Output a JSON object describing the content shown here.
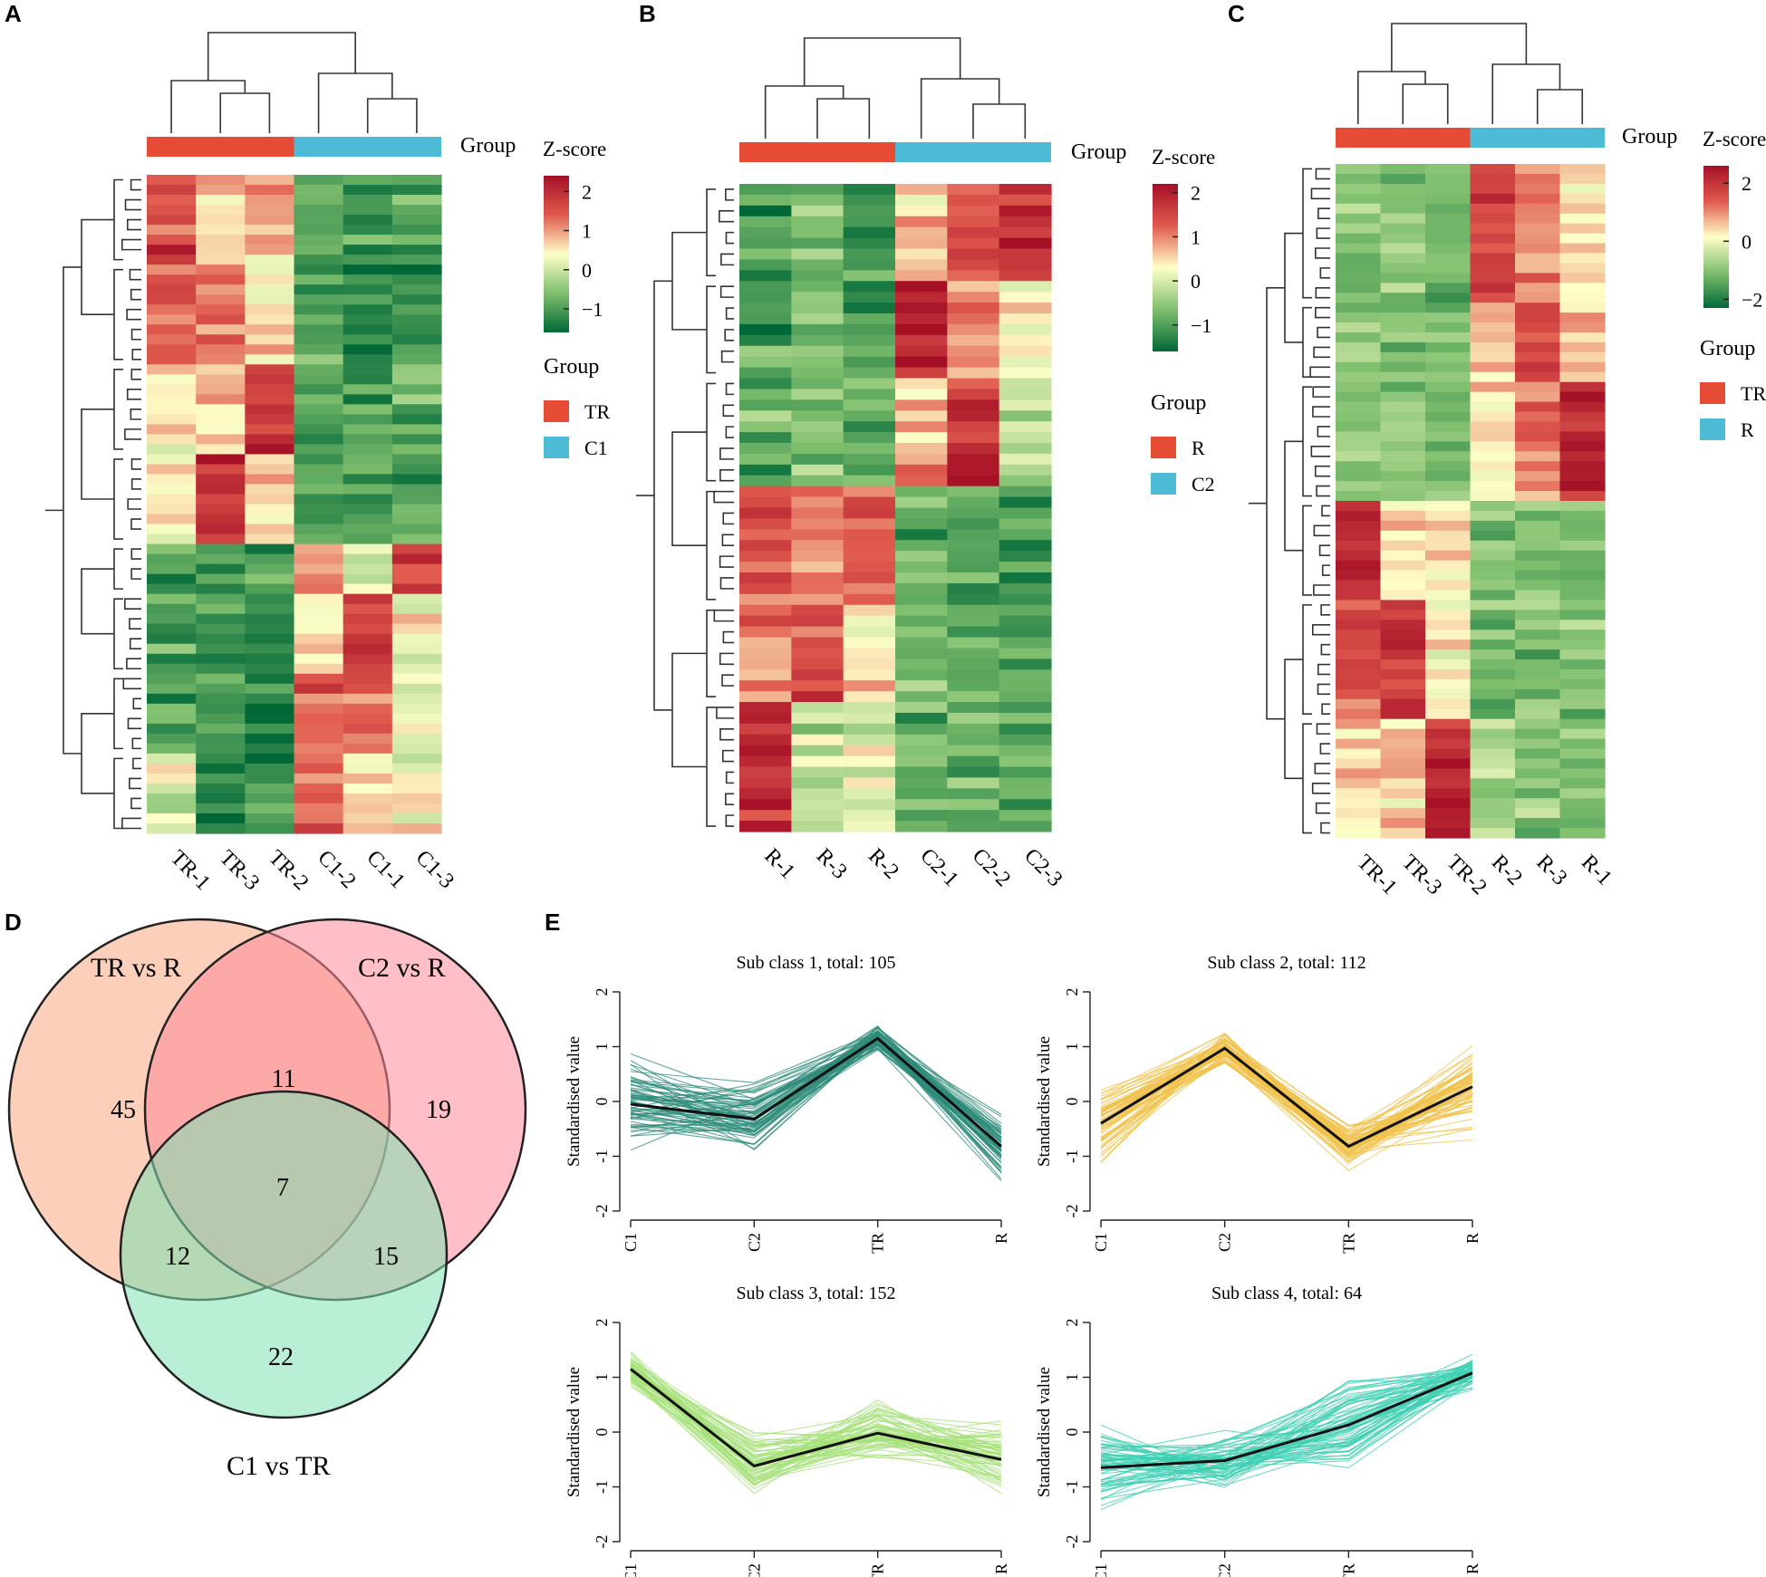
{
  "panel_labels": [
    "A",
    "B",
    "C",
    "D",
    "E"
  ],
  "chart_data": [
    {
      "panel": "A",
      "type": "heatmap",
      "columns": [
        "TR-1",
        "TR-3",
        "TR-2",
        "C1-2",
        "C1-1",
        "C1-3"
      ],
      "column_groups": [
        "TR",
        "TR",
        "TR",
        "C1",
        "C1",
        "C1"
      ],
      "annotation_label": "Group",
      "colorbar": {
        "title": "Z-score",
        "ticks": [
          2,
          1,
          0,
          -1
        ],
        "range": [
          -1.6,
          2.4
        ]
      },
      "legend": {
        "title": "Group",
        "entries": [
          {
            "label": "TR",
            "color": "#E64B35"
          },
          {
            "label": "C1",
            "color": "#4DBBD5"
          }
        ]
      },
      "row_blocks": [
        {
          "rows": 9,
          "means": [
            1.6,
            0.6,
            1.0,
            -1.0,
            -1.1,
            -0.9
          ]
        },
        {
          "rows": 10,
          "means": [
            1.4,
            1.4,
            0.5,
            -1.0,
            -1.2,
            -1.1
          ]
        },
        {
          "rows": 9,
          "means": [
            0.4,
            0.6,
            1.9,
            -1.0,
            -1.0,
            -0.9
          ]
        },
        {
          "rows": 9,
          "means": [
            0.5,
            1.9,
            0.7,
            -0.9,
            -1.0,
            -1.0
          ]
        },
        {
          "rows": 5,
          "means": [
            -0.9,
            -1.0,
            -0.9,
            1.3,
            0.1,
            1.6
          ]
        },
        {
          "rows": 8,
          "means": [
            -1.0,
            -1.0,
            -1.1,
            0.6,
            1.7,
            0.4
          ]
        },
        {
          "rows": 8,
          "means": [
            -0.9,
            -1.1,
            -1.3,
            1.4,
            1.4,
            0.2
          ]
        },
        {
          "rows": 8,
          "means": [
            0.2,
            -1.2,
            -1.2,
            1.6,
            0.7,
            0.4
          ]
        }
      ]
    },
    {
      "panel": "B",
      "type": "heatmap",
      "columns": [
        "R-1",
        "R-3",
        "R-2",
        "C2-1",
        "C2-2",
        "C2-3"
      ],
      "column_groups": [
        "R",
        "R",
        "R",
        "C2",
        "C2",
        "C2"
      ],
      "annotation_label": "Group",
      "colorbar": {
        "title": "Z-score",
        "ticks": [
          2,
          1,
          0,
          -1
        ],
        "range": [
          -1.6,
          2.2
        ]
      },
      "legend": {
        "title": "Group",
        "entries": [
          {
            "label": "R",
            "color": "#E64B35"
          },
          {
            "label": "C2",
            "color": "#4DBBD5"
          }
        ]
      },
      "row_blocks": [
        {
          "rows": 9,
          "means": [
            -1.0,
            -0.6,
            -1.1,
            0.8,
            1.4,
            1.8
          ]
        },
        {
          "rows": 9,
          "means": [
            -1.0,
            -0.8,
            -1.1,
            2.0,
            0.8,
            0.4
          ]
        },
        {
          "rows": 10,
          "means": [
            -0.9,
            -0.7,
            -0.9,
            0.8,
            1.8,
            -0.2
          ]
        },
        {
          "rows": 11,
          "means": [
            1.3,
            1.0,
            1.2,
            -0.9,
            -0.9,
            -1.1
          ]
        },
        {
          "rows": 9,
          "means": [
            0.9,
            1.5,
            0.5,
            -0.8,
            -0.9,
            -1.0
          ]
        },
        {
          "rows": 12,
          "means": [
            2.0,
            -0.2,
            0.1,
            -0.9,
            -0.9,
            -0.9
          ]
        }
      ]
    },
    {
      "panel": "C",
      "type": "heatmap",
      "columns": [
        "TR-1",
        "TR-3",
        "TR-2",
        "R-2",
        "R-3",
        "R-1"
      ],
      "column_groups": [
        "TR",
        "TR",
        "TR",
        "R",
        "R",
        "R"
      ],
      "annotation_label": "Group",
      "colorbar": {
        "title": "Z-score",
        "ticks": [
          2,
          0,
          -2
        ],
        "range": [
          -2.3,
          2.6
        ]
      },
      "legend": {
        "title": "Group",
        "entries": [
          {
            "label": "TR",
            "color": "#E64B35"
          },
          {
            "label": "R",
            "color": "#4DBBD5"
          }
        ]
      },
      "row_blocks": [
        {
          "rows": 14,
          "means": [
            -1.0,
            -1.0,
            -1.2,
            1.8,
            1.0,
            0.5
          ]
        },
        {
          "rows": 8,
          "means": [
            -1.0,
            -1.1,
            -1.2,
            0.6,
            1.8,
            0.8
          ]
        },
        {
          "rows": 12,
          "means": [
            -1.0,
            -0.9,
            -1.1,
            0.3,
            1.0,
            2.2
          ]
        },
        {
          "rows": 10,
          "means": [
            2.2,
            0.4,
            0.2,
            -1.0,
            -1.0,
            -1.2
          ]
        },
        {
          "rows": 12,
          "means": [
            1.5,
            1.9,
            0.3,
            -1.0,
            -1.1,
            -1.0
          ]
        },
        {
          "rows": 12,
          "means": [
            0.5,
            0.6,
            2.0,
            -0.8,
            -1.0,
            -1.0
          ]
        }
      ]
    },
    {
      "panel": "D",
      "type": "venn",
      "sets": [
        {
          "label": "TR vs R",
          "color": "#F7A880"
        },
        {
          "label": "C2 vs R",
          "color": "#FF8A9A"
        },
        {
          "label": "C1 vs TR",
          "color": "#7DE2B3"
        }
      ],
      "regions": [
        {
          "sets": [
            "TR vs R"
          ],
          "count": "45"
        },
        {
          "sets": [
            "C2 vs R"
          ],
          "count": "19"
        },
        {
          "sets": [
            "C1 vs TR"
          ],
          "count": "22"
        },
        {
          "sets": [
            "TR vs R",
            "C2 vs R"
          ],
          "count": "11"
        },
        {
          "sets": [
            "TR vs R",
            "C1 vs TR"
          ],
          "count": "12"
        },
        {
          "sets": [
            "C2 vs R",
            "C1 vs TR"
          ],
          "count": "15"
        },
        {
          "sets": [
            "TR vs R",
            "C2 vs R",
            "C1 vs TR"
          ],
          "count": "7"
        }
      ]
    },
    {
      "panel": "E",
      "type": "line",
      "ylabel": "Standardised value",
      "categories": [
        "C1",
        "C2",
        "TR",
        "R"
      ],
      "ylim": [
        -2,
        2
      ],
      "yticks": [
        "2",
        "1",
        "0",
        "-1",
        "-2"
      ],
      "subplots": [
        {
          "title": "Sub class 1, total: 105",
          "color": "#2E8B7A",
          "mean": [
            -0.05,
            -0.32,
            1.15,
            -0.82
          ],
          "spread": [
            0.45,
            0.35,
            0.15,
            0.3
          ]
        },
        {
          "title": "Sub class 2, total: 112",
          "color": "#F0C24B",
          "mean": [
            -0.4,
            0.97,
            -0.82,
            0.27
          ],
          "spread": [
            0.45,
            0.2,
            0.22,
            0.45
          ]
        },
        {
          "title": "Sub class 3, total: 152",
          "color": "#A6E07A",
          "mean": [
            1.15,
            -0.62,
            -0.02,
            -0.5
          ],
          "spread": [
            0.15,
            0.3,
            0.35,
            0.4
          ]
        },
        {
          "title": "Sub class 4, total: 64",
          "color": "#3ECFB2",
          "mean": [
            -0.65,
            -0.52,
            0.13,
            1.08
          ],
          "spread": [
            0.45,
            0.3,
            0.45,
            0.18
          ]
        }
      ]
    }
  ]
}
